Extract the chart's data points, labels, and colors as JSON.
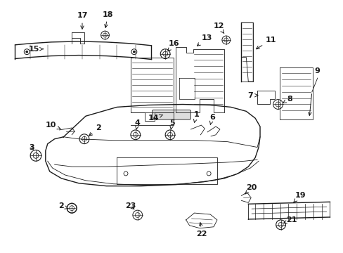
{
  "bg_color": "#ffffff",
  "line_color": "#1a1a1a",
  "figsize": [
    4.89,
    3.6
  ],
  "dpi": 100,
  "label_fontsize": 8,
  "label_bold": true
}
